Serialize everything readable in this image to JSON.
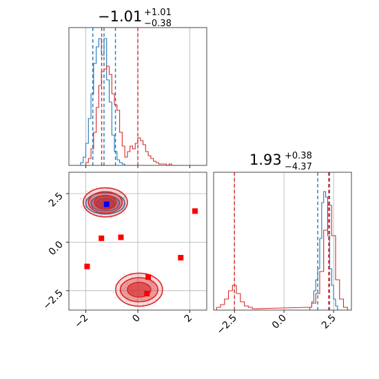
{
  "colors": {
    "blue": "#1f77b4",
    "red": "#d62728",
    "marker_red": "#ff0000",
    "marker_blue": "#0000ff",
    "grid": "#b0b0b0"
  },
  "chart_data": [
    {
      "type": "histogram",
      "panel": "top-left marginal (parameter 1)",
      "title_value": "−1.01",
      "title_plus": "+1.01",
      "title_minus": "−0.38",
      "xlim": [
        -2.65,
        2.65
      ],
      "xticks": [
        -2,
        0,
        2
      ],
      "grid": true,
      "series": [
        {
          "color": "blue",
          "bins": [
            -2.2,
            -2.1,
            -2.0,
            -1.9,
            -1.8,
            -1.7,
            -1.6,
            -1.5,
            -1.4,
            -1.3,
            -1.2,
            -1.1,
            -1.0,
            -0.9,
            -0.8,
            -0.7,
            -0.6
          ],
          "heights": [
            0.02,
            0.06,
            0.16,
            0.34,
            0.52,
            0.74,
            0.86,
            0.92,
            0.8,
            0.92,
            0.62,
            0.46,
            0.22,
            0.1,
            0.04,
            0.02,
            0.01
          ],
          "quantile_lines": [
            -1.73,
            -1.3,
            -0.86
          ]
        },
        {
          "color": "red",
          "bins": [
            -2.0,
            -1.9,
            -1.8,
            -1.7,
            -1.6,
            -1.5,
            -1.4,
            -1.3,
            -1.2,
            -1.1,
            -1.0,
            -0.9,
            -0.8,
            -0.7,
            -0.6,
            -0.5,
            -0.4,
            -0.3,
            -0.2,
            -0.1,
            0.0,
            0.1,
            0.2,
            0.3,
            0.4,
            0.5,
            0.6,
            0.7,
            0.8,
            0.9,
            1.0,
            1.1,
            1.2,
            1.3,
            1.4
          ],
          "heights": [
            0.02,
            0.05,
            0.12,
            0.24,
            0.42,
            0.58,
            0.68,
            0.7,
            0.72,
            0.66,
            0.52,
            0.44,
            0.4,
            0.24,
            0.14,
            0.06,
            0.1,
            0.14,
            0.12,
            0.16,
            0.2,
            0.18,
            0.15,
            0.1,
            0.07,
            0.05,
            0.03,
            0.02,
            0.01,
            0.01,
            0.01,
            0.0,
            0.01,
            0.0,
            0.0
          ],
          "quantile_lines": [
            -1.39,
            0.0
          ]
        }
      ]
    },
    {
      "type": "histogram",
      "panel": "bottom-right marginal (parameter 2)",
      "title_value": "1.93",
      "title_plus": "+0.38",
      "title_minus": "−4.37",
      "xlim": [
        -3.55,
        3.4
      ],
      "xticks": [
        -2.5,
        0.0,
        2.5
      ],
      "xticklabels": [
        "−2.5",
        "0.0",
        "2.5"
      ],
      "grid": true,
      "series": [
        {
          "color": "blue",
          "bins": [
            1.3,
            1.4,
            1.5,
            1.6,
            1.7,
            1.8,
            1.9,
            2.0,
            2.1,
            2.2,
            2.3,
            2.4,
            2.5,
            2.6
          ],
          "heights": [
            0.02,
            0.06,
            0.14,
            0.22,
            0.3,
            0.52,
            0.78,
            0.86,
            0.82,
            0.54,
            0.3,
            0.18,
            0.08,
            0.03
          ],
          "quantile_lines": [
            1.7,
            2.3
          ]
        },
        {
          "color": "red",
          "bins": [
            -3.4,
            -3.2,
            -3.0,
            -2.8,
            -2.6,
            -2.4,
            -2.2,
            -2.0,
            -1.8,
            -1.6,
            1.2,
            1.4,
            1.6,
            1.8,
            2.0,
            2.2,
            2.4,
            2.6,
            2.8,
            3.0
          ],
          "heights": [
            0.02,
            0.04,
            0.08,
            0.14,
            0.18,
            0.12,
            0.06,
            0.03,
            0.02,
            0.01,
            0.02,
            0.05,
            0.12,
            0.28,
            0.58,
            0.76,
            0.54,
            0.22,
            0.08,
            0.02
          ],
          "quantile_lines": [
            -2.5,
            2.25
          ]
        }
      ]
    },
    {
      "type": "scatter",
      "panel": "bottom-left 2D joint distribution",
      "xlim": [
        -2.65,
        2.65
      ],
      "ylim": [
        -3.5,
        3.6
      ],
      "xticks": [
        -2,
        0,
        2
      ],
      "yticks": [
        -2.5,
        0.0,
        2.5
      ],
      "yticklabels": [
        "−2.5",
        "0.0",
        "2.5"
      ],
      "grid": true,
      "contours": [
        {
          "color": "blue",
          "cx": -1.25,
          "cy": 2.0,
          "rx": [
            0.75,
            0.55,
            0.35
          ],
          "ry": [
            0.55,
            0.4,
            0.25
          ]
        },
        {
          "color": "red",
          "cx": -1.25,
          "cy": 2.05,
          "rx": [
            0.85,
            0.65,
            0.42
          ],
          "ry": [
            0.75,
            0.55,
            0.36
          ]
        },
        {
          "color": "red",
          "cx": 0.05,
          "cy": -2.45,
          "rx": [
            0.9,
            0.72,
            0.45
          ],
          "ry": [
            0.85,
            0.62,
            0.38
          ]
        }
      ],
      "red_markers": [
        {
          "x": 2.2,
          "y": 1.6
        },
        {
          "x": -1.4,
          "y": 0.2
        },
        {
          "x": -0.65,
          "y": 0.25
        },
        {
          "x": -1.95,
          "y": -1.25
        },
        {
          "x": 1.65,
          "y": -0.8
        },
        {
          "x": 0.4,
          "y": -1.8
        },
        {
          "x": 0.35,
          "y": -2.65
        }
      ],
      "blue_marker": {
        "x": -1.2,
        "y": 1.95
      }
    }
  ]
}
